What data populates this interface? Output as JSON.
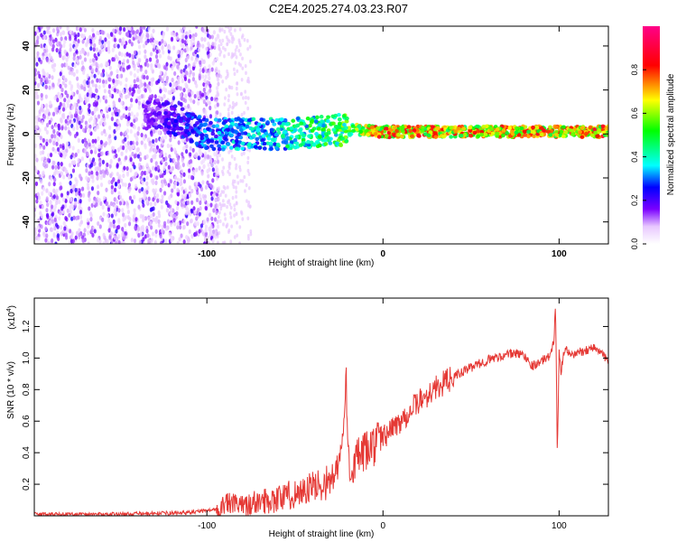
{
  "chart_data": [
    {
      "type": "heatmap",
      "title": "C2E4.2025.274.03.23.R07",
      "xlabel": "Height of straight line (km)",
      "ylabel": "Frequency (Hz)",
      "xlim": [
        -198,
        128
      ],
      "ylim": [
        -50,
        49
      ],
      "xticks": [
        -100,
        0,
        100
      ],
      "xtick_labels": [
        "-100",
        "0",
        "100"
      ],
      "yticks": [
        -40,
        -20,
        0,
        20,
        40
      ],
      "ytick_labels": [
        "-40",
        "-20",
        "0",
        "20",
        "40"
      ],
      "colorbar": {
        "label": "Normalized spectral amplitude",
        "range": [
          0,
          1
        ],
        "ticks": [
          0.0,
          0.2,
          0.4,
          0.6,
          0.8
        ],
        "tick_labels": [
          "0.0",
          "0.2",
          "0.4",
          "0.6",
          "0.8"
        ],
        "colormap": "rainbow (white-purple-blue-cyan-green-yellow-red-magenta)"
      },
      "description_points": [
        {
          "x": -198,
          "y": 0,
          "amp": 0.05
        },
        {
          "x": -130,
          "y": 10,
          "amp": 0.2
        },
        {
          "x": -100,
          "y": 0,
          "amp": 0.35
        },
        {
          "x": -60,
          "y": 0,
          "amp": 0.45
        },
        {
          "x": -20,
          "y": 2,
          "amp": 0.6
        },
        {
          "x": 0,
          "y": 1,
          "amp": 0.85
        },
        {
          "x": 50,
          "y": 1,
          "amp": 0.8
        },
        {
          "x": 100,
          "y": 1,
          "amp": 0.85
        },
        {
          "x": 128,
          "y": 1,
          "amp": 0.85
        }
      ]
    },
    {
      "type": "line",
      "xlabel": "Height of straight line (km)",
      "ylabel": "SNR (10 * v/v)",
      "scale_label": "(x10",
      "scale_exponent": "4",
      "scale_close": ")",
      "xlim": [
        -198,
        128
      ],
      "ylim": [
        0,
        1.38
      ],
      "xticks": [
        -100,
        0,
        100
      ],
      "xtick_labels": [
        "-100",
        "0",
        "100"
      ],
      "yticks": [
        0.2,
        0.4,
        0.6,
        0.8,
        1.0,
        1.2
      ],
      "ytick_labels": [
        "0.2",
        "0.4",
        "0.6",
        "0.8",
        "1.0",
        "1.2"
      ],
      "color": "#e53935",
      "series": [
        {
          "name": "SNR",
          "x": [
            -198,
            -150,
            -110,
            -95,
            -88,
            -80,
            -70,
            -60,
            -50,
            -40,
            -30,
            -25,
            -22,
            -21,
            -20,
            -18,
            -15,
            -10,
            -5,
            0,
            10,
            20,
            30,
            40,
            50,
            60,
            70,
            75,
            80,
            85,
            90,
            95,
            97,
            98,
            99,
            100,
            101,
            103,
            106,
            110,
            115,
            120,
            125,
            128
          ],
          "y": [
            0.01,
            0.01,
            0.02,
            0.04,
            0.08,
            0.06,
            0.09,
            0.11,
            0.14,
            0.18,
            0.22,
            0.3,
            0.6,
            0.9,
            0.4,
            0.3,
            0.36,
            0.4,
            0.45,
            0.5,
            0.6,
            0.72,
            0.81,
            0.88,
            0.94,
            0.99,
            1.02,
            1.03,
            1.02,
            0.95,
            0.98,
            1.02,
            1.1,
            1.36,
            0.38,
            1.05,
            0.9,
            1.06,
            1.02,
            1.03,
            1.05,
            1.07,
            1.02,
            0.97
          ]
        }
      ]
    }
  ]
}
